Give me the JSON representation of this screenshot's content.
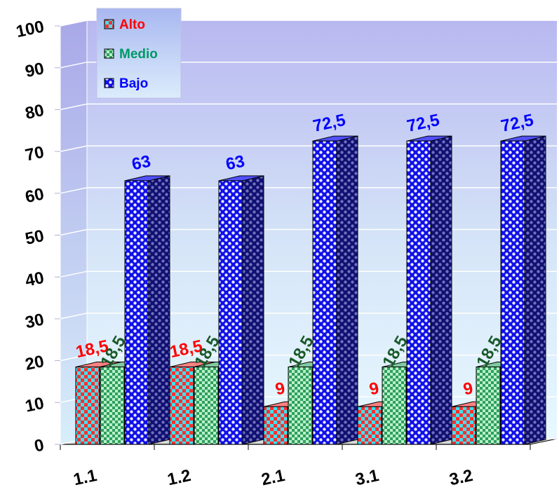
{
  "chart_data": {
    "type": "bar",
    "categories": [
      "1.1",
      "1.2",
      "2.1",
      "3.1",
      "3.2"
    ],
    "series": [
      {
        "name": "Alto",
        "values": [
          18.5,
          18.5,
          9,
          9,
          9
        ],
        "labels": [
          "18,5",
          "18,5",
          "9",
          "9",
          "9"
        ],
        "color": "#ff0000"
      },
      {
        "name": "Medio",
        "values": [
          18.5,
          18.5,
          18.5,
          18.5,
          18.5
        ],
        "labels": [
          "18,5",
          "18,5",
          "18,5",
          "18,5",
          "18,5"
        ],
        "color": "#008000"
      },
      {
        "name": "Bajo",
        "values": [
          63,
          63,
          72.5,
          72.5,
          72.5
        ],
        "labels": [
          "63",
          "63",
          "72,5",
          "72,5",
          "72,5"
        ],
        "color": "#0000ff"
      }
    ],
    "yticks": [
      "0",
      "10",
      "20",
      "30",
      "40",
      "50",
      "60",
      "70",
      "80",
      "90",
      "100"
    ],
    "ylim": [
      0,
      100
    ],
    "grid": true,
    "legend_position": "top-left",
    "colors": {
      "alto": "#ff0000",
      "medio": "#009966",
      "bajo": "#0000ff",
      "medio_label": "#1a5a2a",
      "wall": "#c8c8f4",
      "floor": "#d8d8d8"
    }
  }
}
